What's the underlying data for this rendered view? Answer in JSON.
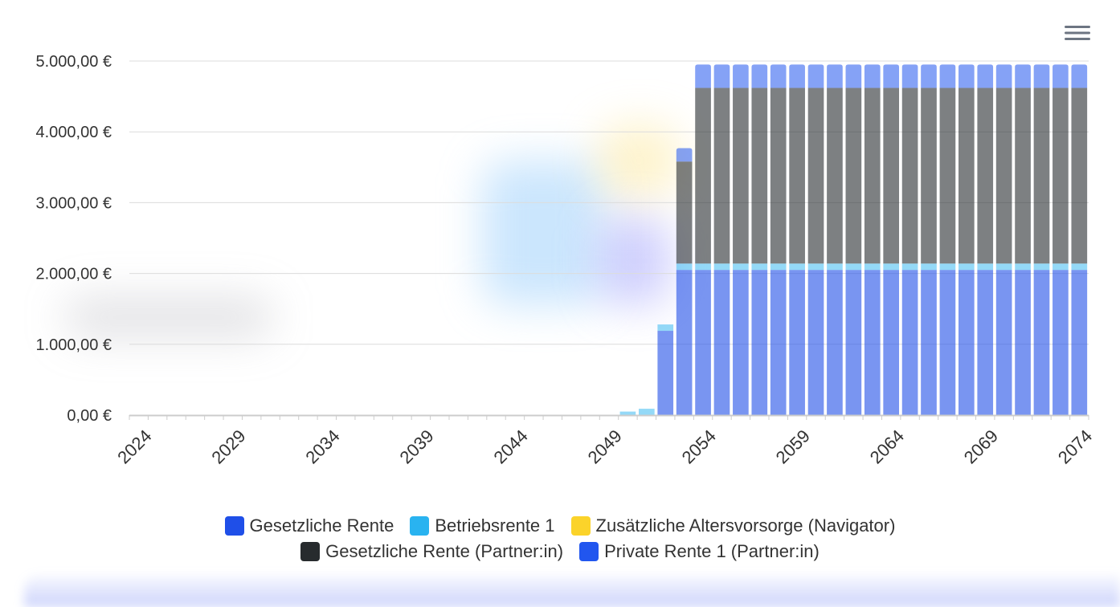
{
  "toolbar": {
    "menu_icon": "hamburger-menu-icon"
  },
  "colors": {
    "gesetzliche_rente": "#1f4fe8",
    "betriebsrente": "#29b3f0",
    "zusaetzliche_altersvorsorge": "#fbd32a",
    "gesetzliche_rente_partner": "#272b2e",
    "private_rente_partner": "#2156ef"
  },
  "chart_data": {
    "type": "bar",
    "stacked": true,
    "x": [
      2024,
      2025,
      2026,
      2027,
      2028,
      2029,
      2030,
      2031,
      2032,
      2033,
      2034,
      2035,
      2036,
      2037,
      2038,
      2039,
      2040,
      2041,
      2042,
      2043,
      2044,
      2045,
      2046,
      2047,
      2048,
      2049,
      2050,
      2051,
      2052,
      2053,
      2054,
      2055,
      2056,
      2057,
      2058,
      2059,
      2060,
      2061,
      2062,
      2063,
      2064,
      2065,
      2066,
      2067,
      2068,
      2069,
      2070,
      2071,
      2072,
      2073,
      2074
    ],
    "x_tick_labels": [
      "2024",
      "2029",
      "2034",
      "2039",
      "2044",
      "2049",
      "2054",
      "2059",
      "2064",
      "2069",
      "2074"
    ],
    "y_ticks": [
      "0,00 €",
      "1.000,00 €",
      "2.000,00 €",
      "3.000,00 €",
      "4.000,00 €",
      "5.000,00 €"
    ],
    "ylim": [
      0,
      5000
    ],
    "grid": true,
    "legend_position": "bottom",
    "series": [
      {
        "name": "Gesetzliche Rente",
        "values": [
          0,
          0,
          0,
          0,
          0,
          0,
          0,
          0,
          0,
          0,
          0,
          0,
          0,
          0,
          0,
          0,
          0,
          0,
          0,
          0,
          0,
          0,
          0,
          0,
          0,
          0,
          0,
          0,
          1190,
          2050,
          2050,
          2050,
          2050,
          2050,
          2050,
          2050,
          2050,
          2050,
          2050,
          2050,
          2050,
          2050,
          2050,
          2050,
          2050,
          2050,
          2050,
          2050,
          2050,
          2050,
          2050
        ]
      },
      {
        "name": "Betriebsrente 1",
        "values": [
          0,
          0,
          0,
          0,
          0,
          0,
          0,
          0,
          0,
          0,
          0,
          0,
          0,
          0,
          0,
          0,
          0,
          0,
          0,
          0,
          0,
          0,
          0,
          0,
          0,
          0,
          50,
          90,
          90,
          90,
          90,
          90,
          90,
          90,
          90,
          90,
          90,
          90,
          90,
          90,
          90,
          90,
          90,
          90,
          90,
          90,
          90,
          90,
          90,
          90,
          90
        ]
      },
      {
        "name": "Zusätzliche Altersvorsorge (Navigator)",
        "values": [
          0,
          0,
          0,
          0,
          0,
          0,
          0,
          0,
          0,
          0,
          0,
          0,
          0,
          0,
          0,
          0,
          0,
          0,
          0,
          0,
          0,
          0,
          0,
          0,
          0,
          0,
          0,
          0,
          0,
          0,
          0,
          0,
          0,
          0,
          0,
          0,
          0,
          0,
          0,
          0,
          0,
          0,
          0,
          0,
          0,
          0,
          0,
          0,
          0,
          0,
          0
        ]
      },
      {
        "name": "Gesetzliche Rente (Partner:in)",
        "values": [
          0,
          0,
          0,
          0,
          0,
          0,
          0,
          0,
          0,
          0,
          0,
          0,
          0,
          0,
          0,
          0,
          0,
          0,
          0,
          0,
          0,
          0,
          0,
          0,
          0,
          0,
          0,
          0,
          0,
          1440,
          2480,
          2480,
          2480,
          2480,
          2480,
          2480,
          2480,
          2480,
          2480,
          2480,
          2480,
          2480,
          2480,
          2480,
          2480,
          2480,
          2480,
          2480,
          2480,
          2480,
          2480
        ]
      },
      {
        "name": "Private Rente 1 (Partner:in)",
        "values": [
          0,
          0,
          0,
          0,
          0,
          0,
          0,
          0,
          0,
          0,
          0,
          0,
          0,
          0,
          0,
          0,
          0,
          0,
          0,
          0,
          0,
          0,
          0,
          0,
          0,
          0,
          0,
          0,
          0,
          190,
          330,
          330,
          330,
          330,
          330,
          330,
          330,
          330,
          330,
          330,
          330,
          330,
          330,
          330,
          330,
          330,
          330,
          330,
          330,
          330,
          330
        ]
      }
    ]
  }
}
